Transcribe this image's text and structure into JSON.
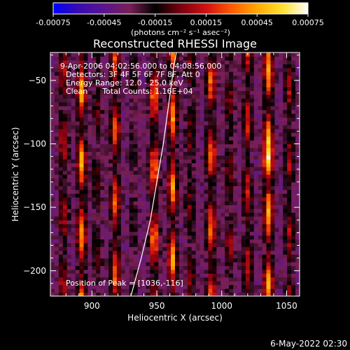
{
  "chart_data": {
    "type": "heatmap",
    "title": "Reconstructed RHESSI Image",
    "xlabel": "Heliocentric X (arcsec)",
    "ylabel": "Heliocentric Y (arcsec)",
    "xlim": [
      868,
      1060
    ],
    "ylim": [
      -220,
      -28
    ],
    "xticks": [
      900,
      950,
      1000,
      1050
    ],
    "yticks": [
      -200,
      -150,
      -100,
      -50
    ],
    "colorbar": {
      "range": [
        -0.00075,
        0.00075
      ],
      "ticks": [
        "-0.00075",
        "-0.00045",
        "-0.00015",
        "0.00015",
        "0.00045",
        "0.00075"
      ],
      "unit_label": "(photons cm⁻² s⁻¹ asec⁻²)",
      "colormap": [
        "#0000ff",
        "#3a0bb0",
        "#5a1590",
        "#7a1f55",
        "#000000",
        "#7a0010",
        "#d01010",
        "#ff5a00",
        "#ffa800",
        "#ffe030",
        "#ffffff"
      ]
    },
    "annotations": [
      "9-Apr-2006 04:02:56.000 to 04:08:56.000",
      "Detectors: 3F 4F 5F 6F 7F 8F, Att 0",
      "Energy Range: 12.0 - 25.0 keV",
      "Clean      Total Counts: 1.16E+04"
    ],
    "peak_label": "Position of Peak = [1036,-116]",
    "peak": [
      1036,
      -116
    ],
    "limb_curve": [
      [
        930,
        -220
      ],
      [
        938,
        -190
      ],
      [
        945,
        -160
      ],
      [
        950,
        -130
      ],
      [
        955,
        -100
      ],
      [
        959,
        -70
      ],
      [
        963,
        -40
      ],
      [
        965,
        -28
      ]
    ],
    "image": {
      "stripe_centers_x": [
        878,
        892,
        904,
        918,
        932,
        948,
        962,
        976,
        992,
        1006,
        1020,
        1036,
        1052
      ],
      "stripe_strength": [
        0.55,
        0.95,
        0.35,
        0.75,
        0.25,
        0.85,
        0.9,
        0.4,
        0.8,
        0.45,
        0.6,
        1.0,
        0.5
      ]
    }
  },
  "footer": {
    "timestamp": "6-May-2022 02:30"
  }
}
